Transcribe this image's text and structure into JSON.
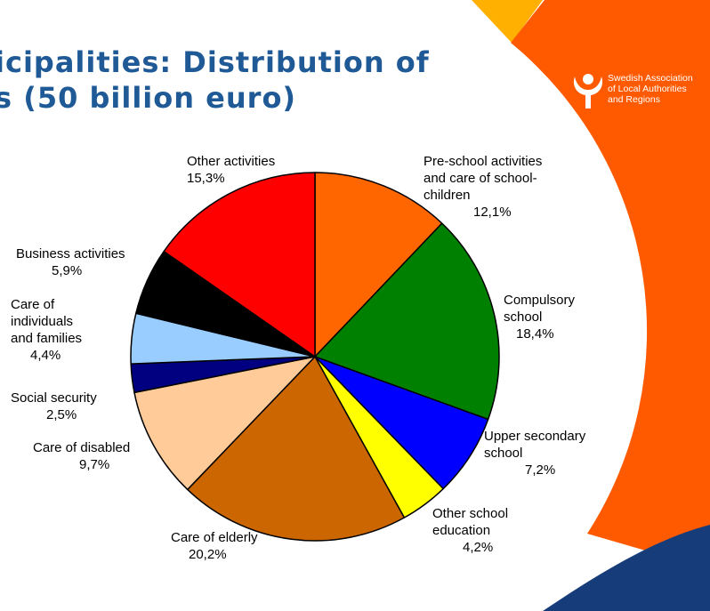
{
  "header": {
    "title_line1": "icipalities: Distribution of",
    "title_line2": "s (50 billion euro)"
  },
  "org": {
    "name_lines": [
      "Swedish Association",
      "of Local Authorities",
      "and Regions"
    ]
  },
  "colors": {
    "title": "#1f5a96",
    "orange_band": "#ff5a00",
    "navy_band": "#163d7a",
    "gold_band": "#ffb000"
  },
  "chart_data": {
    "type": "pie",
    "title": "",
    "start_angle_deg": 0,
    "direction": "clockwise",
    "slices": [
      {
        "name": "Pre-school activities and care of school-children",
        "label_lines": [
          "Pre-school activities",
          "and care of school-",
          "children"
        ],
        "value": 12.1,
        "value_label": "12,1%",
        "color": "#ff6600"
      },
      {
        "name": "Compulsory school",
        "label_lines": [
          "Compulsory",
          "school"
        ],
        "value": 18.4,
        "value_label": "18,4%",
        "color": "#008000"
      },
      {
        "name": "Upper secondary school",
        "label_lines": [
          "Upper secondary",
          "school"
        ],
        "value": 7.2,
        "value_label": "7,2%",
        "color": "#0000ff"
      },
      {
        "name": "Other school education",
        "label_lines": [
          "Other school",
          "education"
        ],
        "value": 4.2,
        "value_label": "4,2%",
        "color": "#ffff00"
      },
      {
        "name": "Care of elderly",
        "label_lines": [
          "Care of elderly"
        ],
        "value": 20.2,
        "value_label": "20,2%",
        "color": "#cc6600"
      },
      {
        "name": "Care of disabled",
        "label_lines": [
          "Care of disabled"
        ],
        "value": 9.7,
        "value_label": "9,7%",
        "color": "#ffcc99"
      },
      {
        "name": "Social security",
        "label_lines": [
          "Social security"
        ],
        "value": 2.5,
        "value_label": "2,5%",
        "color": "#000080"
      },
      {
        "name": "Care of individuals and families",
        "label_lines": [
          "Care of",
          "individuals",
          "and families"
        ],
        "value": 4.4,
        "value_label": "4,4%",
        "color": "#99ccff"
      },
      {
        "name": "Business activities",
        "label_lines": [
          "Business activities"
        ],
        "value": 5.9,
        "value_label": "5,9%",
        "color": "#000000"
      },
      {
        "name": "Other activities",
        "label_lines": [
          "Other activities"
        ],
        "value": 15.3,
        "value_label": "15,3%",
        "color": "#ff0000"
      }
    ]
  }
}
